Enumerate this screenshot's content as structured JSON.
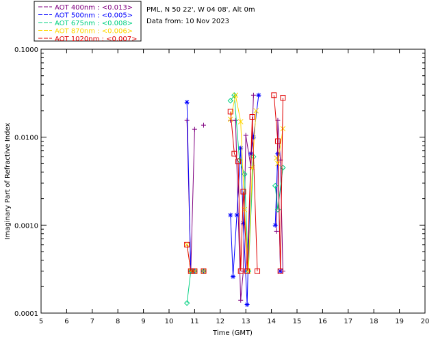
{
  "chart_data": {
    "type": "line",
    "title": "",
    "info": [
      "PML, N 50 22', W 04 08', Alt 0m",
      "Data from: 10 Nov 2023"
    ],
    "xlabel": "Time (GMT)",
    "ylabel": "Imaginary Part of Refractive Index",
    "xlim": [
      5,
      20
    ],
    "ylim": [
      0.0001,
      0.1
    ],
    "yscale": "log",
    "x_ticks": [
      "5",
      "6",
      "7",
      "8",
      "9",
      "10",
      "11",
      "12",
      "13",
      "14",
      "15",
      "16",
      "17",
      "18",
      "19",
      "20"
    ],
    "y_ticks": [
      {
        "value": 0.0001,
        "label": "0.0001"
      },
      {
        "value": 0.001,
        "label": "0.0010"
      },
      {
        "value": 0.01,
        "label": "0.0100"
      },
      {
        "value": 0.1,
        "label": "0.1000"
      }
    ],
    "series": [
      {
        "name": "AOT  400nm : <0.013>",
        "color": "#800080",
        "marker": "plus",
        "segments": [
          [
            [
              10.7,
              0.0155
            ],
            [
              10.85,
              0.0003
            ],
            [
              11.0,
              0.0123
            ]
          ],
          [
            [
              11.35,
              0.0137
            ]
          ],
          [
            [
              12.4,
              0.0155
            ],
            [
              12.6,
              0.0155
            ],
            [
              12.8,
              0.00014
            ],
            [
              12.9,
              0.0003
            ],
            [
              13.0,
              0.0105
            ],
            [
              13.2,
              0.0045
            ],
            [
              13.3,
              0.03
            ]
          ],
          [
            [
              14.2,
              0.00085
            ],
            [
              14.25,
              0.0155
            ],
            [
              14.35,
              0.0055
            ],
            [
              14.45,
              0.0003
            ]
          ]
        ]
      },
      {
        "name": "AOT  500nm : <0.005>",
        "color": "#0000ff",
        "marker": "star",
        "segments": [
          [
            [
              10.7,
              0.025
            ],
            [
              10.85,
              0.0003
            ],
            [
              11.0,
              0.0003
            ]
          ],
          [
            [
              11.35,
              0.0003
            ]
          ],
          [
            [
              12.4,
              0.0013
            ],
            [
              12.5,
              0.00026
            ],
            [
              12.65,
              0.0013
            ],
            [
              12.8,
              0.0075
            ],
            [
              12.9,
              0.00105
            ],
            [
              13.05,
              0.000125
            ],
            [
              13.2,
              0.0065
            ],
            [
              13.3,
              0.01
            ],
            [
              13.5,
              0.03
            ]
          ],
          [
            [
              14.15,
              0.001
            ],
            [
              14.25,
              0.0065
            ],
            [
              14.35,
              0.0003
            ]
          ]
        ]
      },
      {
        "name": "AOT  675nm : <0.008>",
        "color": "#00d080",
        "marker": "diamond",
        "segments": [
          [
            [
              10.7,
              0.00013
            ],
            [
              10.85,
              0.0003
            ],
            [
              11.0,
              0.0003
            ]
          ],
          [
            [
              11.35,
              0.0003
            ]
          ],
          [
            [
              12.4,
              0.026
            ],
            [
              12.55,
              0.03
            ],
            [
              12.75,
              0.0055
            ],
            [
              12.95,
              0.0038
            ],
            [
              13.1,
              0.0003
            ],
            [
              13.3,
              0.006
            ]
          ],
          [
            [
              14.15,
              0.0028
            ],
            [
              14.25,
              0.0015
            ],
            [
              14.45,
              0.0045
            ]
          ]
        ]
      },
      {
        "name": "AOT  870nm : <0.006>",
        "color": "#ffd700",
        "marker": "x",
        "segments": [
          [
            [
              10.7,
              0.0006
            ],
            [
              10.85,
              0.0003
            ],
            [
              11.0,
              0.0003
            ]
          ],
          [
            [
              11.35,
              0.0003
            ]
          ],
          [
            [
              12.4,
              0.016
            ],
            [
              12.6,
              0.03
            ],
            [
              12.8,
              0.015
            ],
            [
              12.95,
              0.0015
            ],
            [
              13.1,
              0.0003
            ],
            [
              13.25,
              0.0045
            ],
            [
              13.4,
              0.02
            ]
          ],
          [
            [
              14.2,
              0.0058
            ],
            [
              14.25,
              0.005
            ],
            [
              14.45,
              0.0125
            ]
          ]
        ]
      },
      {
        "name": "AOT 1020nm : <0.007>",
        "color": "#e00000",
        "marker": "square",
        "segments": [
          [
            [
              10.7,
              0.0006
            ],
            [
              10.85,
              0.0003
            ],
            [
              11.0,
              0.0003
            ]
          ],
          [
            [
              11.35,
              0.0003
            ]
          ],
          [
            [
              12.4,
              0.0195
            ],
            [
              12.55,
              0.0065
            ],
            [
              12.7,
              0.0053
            ],
            [
              12.8,
              0.0003
            ],
            [
              12.9,
              0.0024
            ],
            [
              13.05,
              0.0003
            ],
            [
              13.25,
              0.017
            ],
            [
              13.45,
              0.0003
            ]
          ],
          [
            [
              14.1,
              0.03
            ],
            [
              14.25,
              0.009
            ],
            [
              14.35,
              0.0003
            ],
            [
              14.45,
              0.028
            ]
          ]
        ]
      }
    ]
  }
}
